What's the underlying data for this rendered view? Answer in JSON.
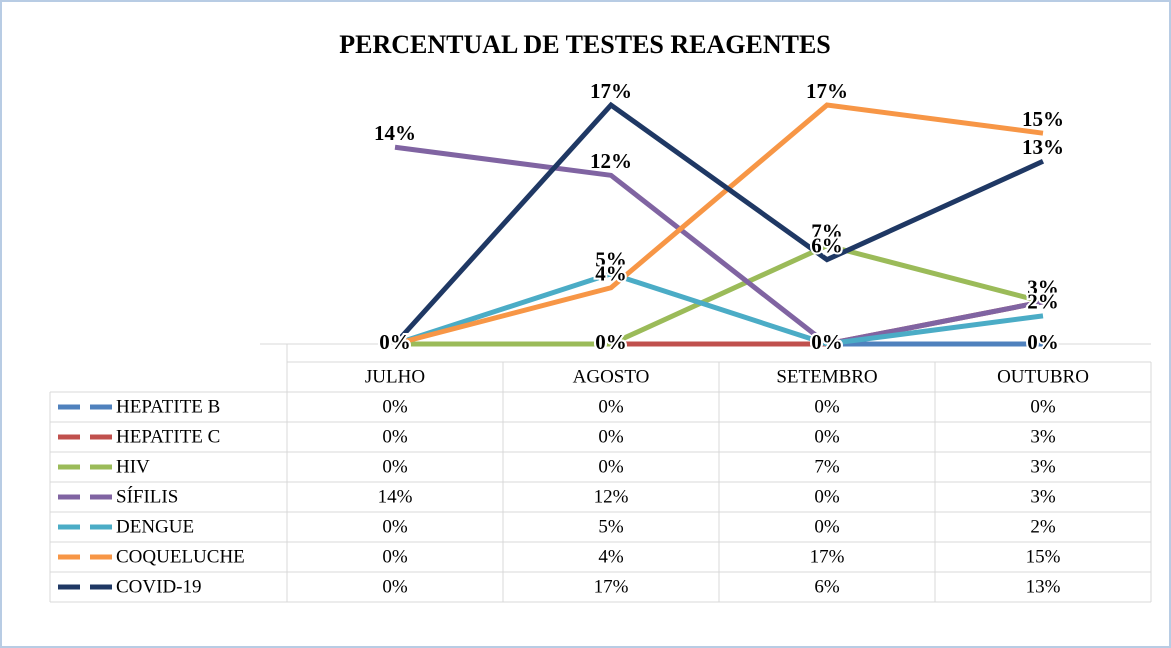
{
  "chart_data": {
    "type": "line",
    "title": "PERCENTUAL DE TESTES REAGENTES",
    "categories": [
      "JULHO",
      "AGOSTO",
      "SETEMBRO",
      "OUTUBRO"
    ],
    "ylim": [
      0,
      18
    ],
    "series": [
      {
        "name": "HEPATITE B",
        "color": "#4f81bd",
        "values": [
          0,
          0,
          0,
          0
        ],
        "value_labels": [
          "0%",
          "0%",
          "0%",
          "0%"
        ]
      },
      {
        "name": "HEPATITE C",
        "color": "#c0504d",
        "values": [
          0,
          0,
          0,
          3
        ],
        "value_labels": [
          "0%",
          "0%",
          "0%",
          "3%"
        ]
      },
      {
        "name": "HIV",
        "color": "#9bbb59",
        "values": [
          0,
          0,
          7,
          3
        ],
        "value_labels": [
          "0%",
          "0%",
          "7%",
          "3%"
        ]
      },
      {
        "name": "SÍFILIS",
        "color": "#8064a2",
        "values": [
          14,
          12,
          0,
          3
        ],
        "value_labels": [
          "14%",
          "12%",
          "0%",
          "3%"
        ]
      },
      {
        "name": "DENGUE",
        "color": "#4bacc6",
        "values": [
          0,
          5,
          0,
          2
        ],
        "value_labels": [
          "0%",
          "5%",
          "0%",
          "2%"
        ]
      },
      {
        "name": "COQUELUCHE",
        "color": "#f79646",
        "values": [
          0,
          4,
          17,
          15
        ],
        "value_labels": [
          "0%",
          "4%",
          "17%",
          "15%"
        ]
      },
      {
        "name": "COVID-19",
        "color": "#1f3864",
        "values": [
          0,
          17,
          6,
          13
        ],
        "value_labels": [
          "0%",
          "17%",
          "6%",
          "13%"
        ]
      }
    ]
  }
}
